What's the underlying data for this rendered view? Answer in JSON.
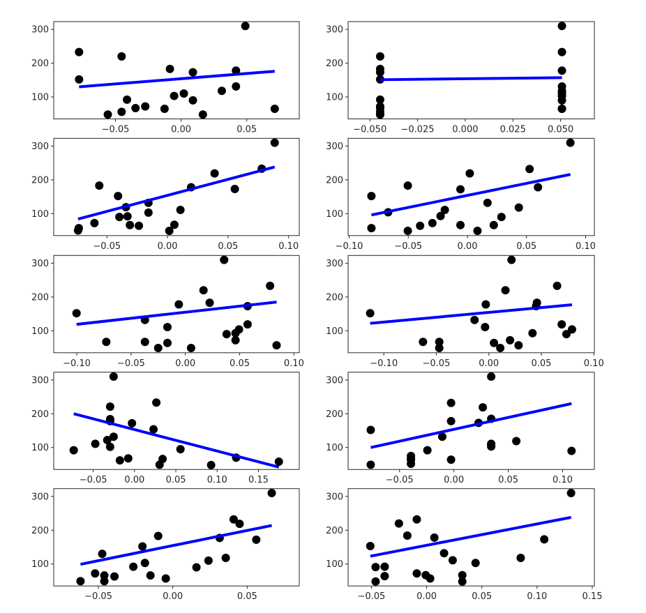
{
  "chart_data": [
    {
      "type": "scatter",
      "xlim": [
        -0.097,
        0.09
      ],
      "ylim": [
        35,
        323
      ],
      "xticks": [
        {
          "v": -0.05,
          "label": "−0.05"
        },
        {
          "v": 0,
          "label": "0.00"
        },
        {
          "v": 0.05,
          "label": "0.05"
        }
      ],
      "yticks": [
        {
          "v": 100,
          "label": "100"
        },
        {
          "v": 200,
          "label": "200"
        },
        {
          "v": 300,
          "label": "300"
        }
      ],
      "points": [
        [
          -0.0777,
          233
        ],
        [
          -0.0777,
          152
        ],
        [
          -0.0453,
          220
        ],
        [
          -0.0558,
          48
        ],
        [
          -0.0453,
          56
        ],
        [
          -0.0412,
          92
        ],
        [
          -0.0347,
          67
        ],
        [
          -0.0273,
          72
        ],
        [
          -0.0126,
          65
        ],
        [
          -0.0085,
          183
        ],
        [
          -0.0053,
          103
        ],
        [
          0.0021,
          110
        ],
        [
          0.009,
          173
        ],
        [
          0.009,
          90
        ],
        [
          0.0166,
          48
        ],
        [
          0.031,
          118
        ],
        [
          0.0418,
          178
        ],
        [
          0.0418,
          131
        ],
        [
          0.0489,
          310
        ],
        [
          0.0713,
          65
        ]
      ],
      "fit_line": [
        [
          -0.0777,
          130
        ],
        [
          0.0713,
          176
        ]
      ],
      "point_color": "#000000",
      "line_color": "#0000ff"
    },
    {
      "type": "scatter",
      "xlim": [
        -0.0614,
        0.0677
      ],
      "ylim": [
        35,
        323
      ],
      "xticks": [
        {
          "v": -0.05,
          "label": "−0.050"
        },
        {
          "v": -0.025,
          "label": "−0.025"
        },
        {
          "v": 0,
          "label": "0.000"
        },
        {
          "v": 0.025,
          "label": "0.025"
        },
        {
          "v": 0.05,
          "label": "0.050"
        }
      ],
      "yticks": [
        {
          "v": 100,
          "label": "100"
        },
        {
          "v": 200,
          "label": "200"
        },
        {
          "v": 300,
          "label": "300"
        }
      ],
      "points": [
        [
          -0.0446,
          220
        ],
        [
          -0.0446,
          183
        ],
        [
          -0.0446,
          173
        ],
        [
          -0.0446,
          152
        ],
        [
          -0.0446,
          92
        ],
        [
          -0.0446,
          72
        ],
        [
          -0.0446,
          67
        ],
        [
          -0.0446,
          56
        ],
        [
          -0.0446,
          48
        ],
        [
          -0.0446,
          48
        ],
        [
          0.0507,
          310
        ],
        [
          0.0507,
          233
        ],
        [
          0.0507,
          178
        ],
        [
          0.0507,
          131
        ],
        [
          0.0507,
          118
        ],
        [
          0.0507,
          110
        ],
        [
          0.0507,
          103
        ],
        [
          0.0507,
          90
        ],
        [
          0.0507,
          65
        ],
        [
          0.0507,
          65
        ]
      ],
      "fit_line": [
        [
          -0.0446,
          151
        ],
        [
          0.0507,
          157
        ]
      ],
      "point_color": "#000000",
      "line_color": "#0000ff"
    },
    {
      "type": "scatter",
      "xlim": [
        -0.0939,
        0.1088
      ],
      "ylim": [
        35,
        323
      ],
      "xticks": [
        {
          "v": -0.05,
          "label": "−0.05"
        },
        {
          "v": 0,
          "label": "0.00"
        },
        {
          "v": 0.05,
          "label": "0.05"
        },
        {
          "v": 0.1,
          "label": "0.10"
        }
      ],
      "yticks": [
        {
          "v": 100,
          "label": "100"
        },
        {
          "v": 200,
          "label": "200"
        },
        {
          "v": 300,
          "label": "300"
        }
      ],
      "points": [
        [
          -0.0738,
          50
        ],
        [
          -0.0732,
          57
        ],
        [
          -0.0603,
          72
        ],
        [
          -0.0563,
          183
        ],
        [
          -0.0408,
          152
        ],
        [
          -0.0397,
          90
        ],
        [
          -0.0343,
          119
        ],
        [
          -0.033,
          92
        ],
        [
          -0.031,
          66
        ],
        [
          -0.0236,
          64
        ],
        [
          -0.0157,
          103
        ],
        [
          -0.0157,
          132
        ],
        [
          0.0015,
          49
        ],
        [
          0.0057,
          67
        ],
        [
          0.0107,
          111
        ],
        [
          0.0195,
          178
        ],
        [
          0.0389,
          219
        ],
        [
          0.0556,
          173
        ],
        [
          0.0778,
          233
        ],
        [
          0.0885,
          310
        ]
      ],
      "fit_line": [
        [
          -0.0738,
          84
        ],
        [
          0.0885,
          238
        ]
      ],
      "point_color": "#000000",
      "line_color": "#0000ff"
    },
    {
      "type": "scatter",
      "xlim": [
        -0.1009,
        0.1074
      ],
      "ylim": [
        35,
        323
      ],
      "xticks": [
        {
          "v": -0.1,
          "label": "−0.10"
        },
        {
          "v": -0.05,
          "label": "−0.05"
        },
        {
          "v": 0,
          "label": "0.00"
        },
        {
          "v": 0.05,
          "label": "0.05"
        },
        {
          "v": 0.1,
          "label": "0.10"
        }
      ],
      "yticks": [
        {
          "v": 100,
          "label": "100"
        },
        {
          "v": 200,
          "label": "200"
        },
        {
          "v": 300,
          "label": "300"
        }
      ],
      "points": [
        [
          -0.0812,
          152
        ],
        [
          -0.0812,
          57
        ],
        [
          -0.067,
          104
        ],
        [
          -0.0504,
          183
        ],
        [
          -0.0504,
          49
        ],
        [
          -0.04,
          64
        ],
        [
          -0.0296,
          72
        ],
        [
          -0.0227,
          93
        ],
        [
          -0.0191,
          111
        ],
        [
          -0.0059,
          172
        ],
        [
          -0.0059,
          66
        ],
        [
          0.002,
          219
        ],
        [
          0.0085,
          49
        ],
        [
          0.017,
          132
        ],
        [
          0.0223,
          66
        ],
        [
          0.0288,
          90
        ],
        [
          0.0435,
          118
        ],
        [
          0.0526,
          232
        ],
        [
          0.0597,
          178
        ],
        [
          0.0871,
          310
        ]
      ],
      "fit_line": [
        [
          -0.0812,
          96
        ],
        [
          0.0871,
          216
        ]
      ],
      "point_color": "#000000",
      "line_color": "#0000ff"
    },
    {
      "type": "scatter",
      "xlim": [
        -0.1212,
        0.1049
      ],
      "ylim": [
        35,
        323
      ],
      "xticks": [
        {
          "v": -0.1,
          "label": "−0.10"
        },
        {
          "v": -0.05,
          "label": "−0.05"
        },
        {
          "v": 0,
          "label": "0.00"
        },
        {
          "v": 0.05,
          "label": "0.05"
        },
        {
          "v": 0.1,
          "label": "0.10"
        }
      ],
      "yticks": [
        {
          "v": 100,
          "label": "100"
        },
        {
          "v": 200,
          "label": "200"
        },
        {
          "v": 300,
          "label": "300"
        }
      ],
      "points": [
        [
          -0.1002,
          152
        ],
        [
          -0.0728,
          67
        ],
        [
          -0.0372,
          132
        ],
        [
          -0.0372,
          67
        ],
        [
          -0.025,
          49
        ],
        [
          -0.0165,
          111
        ],
        [
          -0.0165,
          64
        ],
        [
          -0.006,
          178
        ],
        [
          0.0053,
          49
        ],
        [
          0.0167,
          220
        ],
        [
          0.0224,
          183
        ],
        [
          0.0357,
          310
        ],
        [
          0.038,
          90
        ],
        [
          0.0462,
          72
        ],
        [
          0.0462,
          93
        ],
        [
          0.0494,
          104
        ],
        [
          0.0573,
          173
        ],
        [
          0.0573,
          119
        ],
        [
          0.078,
          233
        ],
        [
          0.084,
          57
        ]
      ],
      "fit_line": [
        [
          -0.1002,
          119
        ],
        [
          0.084,
          185
        ]
      ],
      "point_color": "#000000",
      "line_color": "#0000ff"
    },
    {
      "type": "scatter",
      "xlim": [
        -0.134,
        0.1005
      ],
      "ylim": [
        35,
        323
      ],
      "xticks": [
        {
          "v": -0.1,
          "label": "−0.10"
        },
        {
          "v": -0.05,
          "label": "−0.05"
        },
        {
          "v": 0,
          "label": "0.00"
        },
        {
          "v": 0.05,
          "label": "0.05"
        },
        {
          "v": 0.1,
          "label": "0.10"
        }
      ],
      "yticks": [
        {
          "v": 100,
          "label": "100"
        },
        {
          "v": 200,
          "label": "200"
        },
        {
          "v": 300,
          "label": "300"
        }
      ],
      "points": [
        [
          -0.113,
          152
        ],
        [
          -0.0627,
          67
        ],
        [
          -0.0472,
          67
        ],
        [
          -0.0472,
          49
        ],
        [
          -0.0136,
          132
        ],
        [
          -0.0029,
          178
        ],
        [
          -0.0036,
          111
        ],
        [
          0.0049,
          64
        ],
        [
          0.0109,
          49
        ],
        [
          0.0158,
          220
        ],
        [
          0.0202,
          72
        ],
        [
          0.0216,
          310
        ],
        [
          0.0283,
          57
        ],
        [
          0.0416,
          93
        ],
        [
          0.0458,
          183
        ],
        [
          0.045,
          173
        ],
        [
          0.065,
          233
        ],
        [
          0.0694,
          119
        ],
        [
          0.0739,
          90
        ],
        [
          0.0792,
          104
        ]
      ],
      "fit_line": [
        [
          -0.113,
          122
        ],
        [
          0.0792,
          177
        ]
      ],
      "point_color": "#000000",
      "line_color": "#0000ff"
    },
    {
      "type": "scatter",
      "xlim": [
        -0.0978,
        0.1994
      ],
      "ylim": [
        35,
        323
      ],
      "xticks": [
        {
          "v": -0.05,
          "label": "−0.05"
        },
        {
          "v": 0,
          "label": "0.00"
        },
        {
          "v": 0.05,
          "label": "0.05"
        },
        {
          "v": 0.1,
          "label": "0.10"
        },
        {
          "v": 0.15,
          "label": "0.15"
        }
      ],
      "yticks": [
        {
          "v": 100,
          "label": "100"
        },
        {
          "v": 200,
          "label": "200"
        },
        {
          "v": 300,
          "label": "300"
        }
      ],
      "points": [
        [
          -0.0736,
          92
        ],
        [
          -0.0475,
          111
        ],
        [
          -0.0295,
          221
        ],
        [
          -0.0295,
          184
        ],
        [
          -0.0295,
          178
        ],
        [
          -0.033,
          122
        ],
        [
          -0.0295,
          102
        ],
        [
          -0.0253,
          310
        ],
        [
          -0.0253,
          132
        ],
        [
          -0.0177,
          62
        ],
        [
          -0.0076,
          68
        ],
        [
          -0.0031,
          172
        ],
        [
          0.023,
          154
        ],
        [
          0.0264,
          233
        ],
        [
          0.0303,
          49
        ],
        [
          0.034,
          66
        ],
        [
          0.0556,
          95
        ],
        [
          0.0927,
          48
        ],
        [
          0.123,
          70
        ],
        [
          0.1747,
          58
        ]
      ],
      "fit_line": [
        [
          -0.0736,
          200
        ],
        [
          0.1747,
          42
        ]
      ],
      "point_color": "#000000",
      "line_color": "#0000ff"
    },
    {
      "type": "scatter",
      "xlim": [
        -0.0973,
        0.1292
      ],
      "ylim": [
        35,
        323
      ],
      "xticks": [
        {
          "v": -0.05,
          "label": "−0.05"
        },
        {
          "v": 0,
          "label": "0.00"
        },
        {
          "v": 0.05,
          "label": "0.05"
        },
        {
          "v": 0.1,
          "label": "0.10"
        }
      ],
      "yticks": [
        {
          "v": 100,
          "label": "100"
        },
        {
          "v": 200,
          "label": "200"
        },
        {
          "v": 300,
          "label": "300"
        }
      ],
      "points": [
        [
          -0.0765,
          152
        ],
        [
          -0.0765,
          49
        ],
        [
          -0.0395,
          75
        ],
        [
          -0.0395,
          67
        ],
        [
          -0.0395,
          64
        ],
        [
          -0.0395,
          52
        ],
        [
          -0.0244,
          92
        ],
        [
          -0.0107,
          132
        ],
        [
          -0.0026,
          232
        ],
        [
          -0.0026,
          178
        ],
        [
          -0.0026,
          64
        ],
        [
          0.0227,
          173
        ],
        [
          0.0266,
          219
        ],
        [
          0.0343,
          310
        ],
        [
          0.0343,
          185
        ],
        [
          0.0343,
          111
        ],
        [
          0.0343,
          103
        ],
        [
          0.0343,
          110
        ],
        [
          0.0574,
          119
        ],
        [
          0.1082,
          90
        ]
      ],
      "fit_line": [
        [
          -0.0765,
          100
        ],
        [
          0.1082,
          230
        ]
      ],
      "point_color": "#000000",
      "line_color": "#0000ff"
    },
    {
      "type": "scatter",
      "xlim": [
        -0.08,
        0.085
      ],
      "ylim": [
        35,
        323
      ],
      "xticks": [
        {
          "v": -0.05,
          "label": "−0.05"
        },
        {
          "v": 0,
          "label": "0.00"
        },
        {
          "v": 0.05,
          "label": "0.05"
        }
      ],
      "yticks": [
        {
          "v": 100,
          "label": "100"
        },
        {
          "v": 200,
          "label": "200"
        },
        {
          "v": 300,
          "label": "300"
        }
      ],
      "points": [
        [
          -0.062,
          49
        ],
        [
          -0.0522,
          72
        ],
        [
          -0.0474,
          130
        ],
        [
          -0.046,
          66
        ],
        [
          -0.046,
          49
        ],
        [
          -0.0392,
          63
        ],
        [
          -0.0265,
          92
        ],
        [
          -0.0204,
          152
        ],
        [
          -0.0187,
          103
        ],
        [
          -0.015,
          66
        ],
        [
          -0.0098,
          183
        ],
        [
          -0.0047,
          57
        ],
        [
          0.0159,
          90
        ],
        [
          0.024,
          110
        ],
        [
          0.0315,
          177
        ],
        [
          0.0356,
          118
        ],
        [
          0.0409,
          232
        ],
        [
          0.0449,
          219
        ],
        [
          0.0561,
          172
        ],
        [
          0.0665,
          310
        ]
      ],
      "fit_line": [
        [
          -0.062,
          99
        ],
        [
          0.0665,
          214
        ]
      ],
      "point_color": "#000000",
      "line_color": "#0000ff"
    },
    {
      "type": "scatter",
      "xlim": [
        -0.0711,
        0.1519
      ],
      "ylim": [
        35,
        323
      ],
      "xticks": [
        {
          "v": -0.05,
          "label": "−0.05"
        },
        {
          "v": 0,
          "label": "0.00"
        },
        {
          "v": 0.05,
          "label": "0.05"
        },
        {
          "v": 0.1,
          "label": "0.10"
        },
        {
          "v": 0.15,
          "label": "0.15"
        }
      ],
      "yticks": [
        {
          "v": 100,
          "label": "100"
        },
        {
          "v": 200,
          "label": "200"
        },
        {
          "v": 300,
          "label": "300"
        }
      ],
      "points": [
        [
          -0.051,
          153
        ],
        [
          -0.0462,
          91
        ],
        [
          -0.0462,
          48
        ],
        [
          -0.038,
          92
        ],
        [
          -0.038,
          64
        ],
        [
          -0.0251,
          220
        ],
        [
          -0.0175,
          184
        ],
        [
          -0.0089,
          232
        ],
        [
          -0.0089,
          72
        ],
        [
          -0.0008,
          67
        ],
        [
          0.0032,
          57
        ],
        [
          0.007,
          178
        ],
        [
          0.0158,
          132
        ],
        [
          0.0236,
          111
        ],
        [
          0.0323,
          67
        ],
        [
          0.0323,
          48
        ],
        [
          0.0443,
          103
        ],
        [
          0.0852,
          118
        ],
        [
          0.1065,
          173
        ],
        [
          0.1308,
          310
        ]
      ],
      "fit_line": [
        [
          -0.051,
          123
        ],
        [
          0.1308,
          238
        ]
      ],
      "point_color": "#000000",
      "line_color": "#0000ff"
    }
  ]
}
